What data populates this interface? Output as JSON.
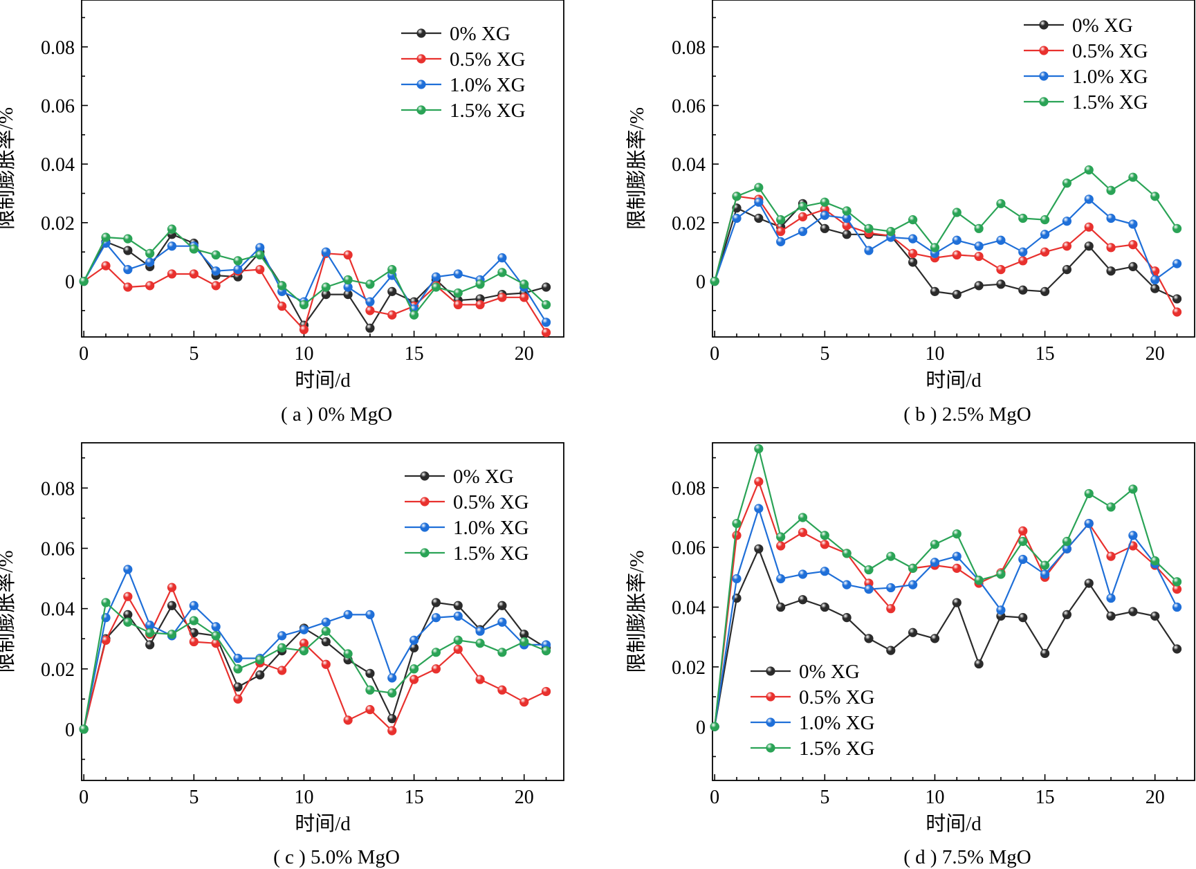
{
  "figure": {
    "xlabel": "时间/d",
    "ylabel": "限制膨胀率/%",
    "xticks": [
      0,
      5,
      10,
      15,
      20
    ],
    "yticks": [
      "0",
      "0.02",
      "0.04",
      "0.06",
      "0.08"
    ],
    "colors": {
      "0% XG": "#2b2b2b",
      "0.5% XG": "#e8312e",
      "1.0% XG": "#1f6fd8",
      "1.5% XG": "#2aa356"
    }
  },
  "chart_data": [
    {
      "type": "line",
      "title": "( a ) 0% MgO",
      "xlabel": "时间/d",
      "ylabel": "限制膨胀率/%",
      "xlim": [
        -0.1,
        21.8
      ],
      "ylim": [
        -0.019,
        0.096
      ],
      "legend": "top-right",
      "x": [
        0,
        1,
        2,
        3,
        4,
        5,
        6,
        7,
        8,
        9,
        10,
        11,
        12,
        13,
        14,
        15,
        16,
        17,
        18,
        19,
        20,
        21
      ],
      "series": [
        {
          "name": "0% XG",
          "values": [
            0,
            0.0135,
            0.0105,
            0.005,
            0.016,
            0.013,
            0.002,
            0.0015,
            0.01,
            -0.0015,
            -0.015,
            -0.0045,
            -0.0045,
            -0.016,
            -0.0035,
            -0.007,
            0.0005,
            -0.0065,
            -0.006,
            -0.0045,
            -0.004,
            -0.002
          ]
        },
        {
          "name": "0.5% XG",
          "values": [
            0,
            0.0053,
            -0.002,
            -0.0015,
            0.0025,
            0.0025,
            -0.0015,
            0.0035,
            0.004,
            -0.0085,
            -0.0165,
            0.0095,
            0.009,
            -0.01,
            -0.0115,
            -0.0085,
            -0.0015,
            -0.008,
            -0.008,
            -0.0055,
            -0.0055,
            -0.0175
          ]
        },
        {
          "name": "1.0% XG",
          "values": [
            0,
            0.013,
            0.004,
            0.0065,
            0.012,
            0.012,
            0.0035,
            0.004,
            0.0115,
            -0.0035,
            -0.007,
            0.01,
            -0.002,
            -0.007,
            0.002,
            -0.0095,
            0.0015,
            0.0025,
            0.0005,
            0.008,
            -0.002,
            -0.014
          ]
        },
        {
          "name": "1.5% XG",
          "values": [
            0,
            0.015,
            0.0145,
            0.0095,
            0.0178,
            0.011,
            0.009,
            0.007,
            0.009,
            -0.0015,
            -0.008,
            -0.002,
            0.0005,
            -0.001,
            0.004,
            -0.0115,
            -0.002,
            -0.004,
            -0.001,
            0.003,
            -0.001,
            -0.008
          ]
        }
      ]
    },
    {
      "type": "line",
      "title": "( b ) 2.5% MgO",
      "xlabel": "时间/d",
      "ylabel": "限制膨胀率/%",
      "xlim": [
        -0.1,
        21.8
      ],
      "ylim": [
        -0.019,
        0.096
      ],
      "legend": "top-right",
      "x": [
        0,
        1,
        2,
        3,
        4,
        5,
        6,
        7,
        8,
        9,
        10,
        11,
        12,
        13,
        14,
        15,
        16,
        17,
        18,
        19,
        20,
        21
      ],
      "series": [
        {
          "name": "0% XG",
          "values": [
            0,
            0.025,
            0.0215,
            0.0185,
            0.0265,
            0.018,
            0.016,
            0.016,
            0.0155,
            0.0065,
            -0.0035,
            -0.0045,
            -0.0015,
            -0.001,
            -0.003,
            -0.0035,
            0.004,
            0.012,
            0.0035,
            0.005,
            -0.0025,
            -0.006
          ]
        },
        {
          "name": "0.5% XG",
          "values": [
            0,
            0.029,
            0.028,
            0.017,
            0.022,
            0.0245,
            0.019,
            0.0165,
            0.0155,
            0.0095,
            0.008,
            0.009,
            0.0085,
            0.004,
            0.007,
            0.01,
            0.012,
            0.0185,
            0.0115,
            0.0125,
            0.0035,
            -0.0105
          ]
        },
        {
          "name": "1.0% XG",
          "values": [
            0,
            0.0215,
            0.027,
            0.0135,
            0.017,
            0.0225,
            0.0215,
            0.0105,
            0.015,
            0.0145,
            0.0095,
            0.014,
            0.012,
            0.014,
            0.01,
            0.016,
            0.0205,
            0.028,
            0.0215,
            0.0195,
            0.0005,
            0.006
          ]
        },
        {
          "name": "1.5% XG",
          "values": [
            0,
            0.029,
            0.032,
            0.021,
            0.0255,
            0.027,
            0.024,
            0.018,
            0.017,
            0.021,
            0.0115,
            0.0235,
            0.018,
            0.0265,
            0.0215,
            0.021,
            0.0335,
            0.038,
            0.031,
            0.0355,
            0.029,
            0.018
          ]
        }
      ]
    },
    {
      "type": "line",
      "title": "( c ) 5.0% MgO",
      "xlabel": "时间/d",
      "ylabel": "限制膨胀率/%",
      "xlim": [
        -0.1,
        21.8
      ],
      "ylim": [
        -0.017,
        0.095
      ],
      "legend": "top-right",
      "x": [
        0,
        1,
        2,
        3,
        4,
        5,
        6,
        7,
        8,
        9,
        10,
        11,
        12,
        13,
        14,
        15,
        16,
        17,
        18,
        19,
        20,
        21
      ],
      "series": [
        {
          "name": "0% XG",
          "values": [
            0,
            0.03,
            0.038,
            0.028,
            0.041,
            0.032,
            0.031,
            0.014,
            0.018,
            0.026,
            0.0335,
            0.029,
            0.023,
            0.0185,
            0.0035,
            0.027,
            0.042,
            0.041,
            0.033,
            0.041,
            0.0315,
            0.027
          ]
        },
        {
          "name": "0.5% XG",
          "values": [
            0,
            0.0295,
            0.044,
            0.0315,
            0.047,
            0.029,
            0.0285,
            0.01,
            0.022,
            0.0195,
            0.0285,
            0.0215,
            0.003,
            0.0065,
            -0.0005,
            0.0165,
            0.02,
            0.0265,
            0.0165,
            0.013,
            0.009,
            0.0125
          ]
        },
        {
          "name": "1.0% XG",
          "values": [
            0,
            0.037,
            0.053,
            0.0345,
            0.031,
            0.041,
            0.034,
            0.0235,
            0.0235,
            0.031,
            0.033,
            0.0355,
            0.038,
            0.038,
            0.017,
            0.0295,
            0.037,
            0.0375,
            0.0325,
            0.0355,
            0.028,
            0.028
          ]
        },
        {
          "name": "1.5% XG",
          "values": [
            0,
            0.042,
            0.0355,
            0.032,
            0.0315,
            0.036,
            0.031,
            0.02,
            0.023,
            0.027,
            0.026,
            0.0325,
            0.025,
            0.013,
            0.012,
            0.02,
            0.0255,
            0.0295,
            0.0285,
            0.0255,
            0.029,
            0.026
          ]
        }
      ]
    },
    {
      "type": "line",
      "title": "( d ) 7.5% MgO",
      "xlabel": "时间/d",
      "ylabel": "限制膨胀率/%",
      "xlim": [
        -0.1,
        21.8
      ],
      "ylim": [
        -0.018,
        0.095
      ],
      "legend": "bottom-left",
      "x": [
        0,
        1,
        2,
        3,
        4,
        5,
        6,
        7,
        8,
        9,
        10,
        11,
        12,
        13,
        14,
        15,
        16,
        17,
        18,
        19,
        20,
        21
      ],
      "series": [
        {
          "name": "0% XG",
          "values": [
            0,
            0.043,
            0.0595,
            0.04,
            0.0425,
            0.04,
            0.0365,
            0.0295,
            0.0255,
            0.0315,
            0.0295,
            0.0415,
            0.021,
            0.037,
            0.0365,
            0.0245,
            0.0375,
            0.048,
            0.037,
            0.0385,
            0.037,
            0.026
          ]
        },
        {
          "name": "0.5% XG",
          "values": [
            0,
            0.064,
            0.082,
            0.0605,
            0.065,
            0.061,
            0.058,
            0.048,
            0.0395,
            0.053,
            0.054,
            0.053,
            0.048,
            0.0515,
            0.0655,
            0.05,
            0.0595,
            0.068,
            0.057,
            0.0605,
            0.054,
            0.046
          ]
        },
        {
          "name": "1.0% XG",
          "values": [
            0,
            0.0495,
            0.073,
            0.0495,
            0.051,
            0.052,
            0.0475,
            0.046,
            0.0465,
            0.0475,
            0.055,
            0.057,
            0.049,
            0.039,
            0.056,
            0.051,
            0.0595,
            0.068,
            0.043,
            0.064,
            0.0545,
            0.04
          ]
        },
        {
          "name": "1.5% XG",
          "values": [
            0,
            0.068,
            0.093,
            0.0635,
            0.07,
            0.064,
            0.058,
            0.0525,
            0.057,
            0.053,
            0.061,
            0.0645,
            0.049,
            0.051,
            0.062,
            0.054,
            0.062,
            0.078,
            0.0735,
            0.0795,
            0.0555,
            0.0485
          ]
        }
      ]
    }
  ]
}
